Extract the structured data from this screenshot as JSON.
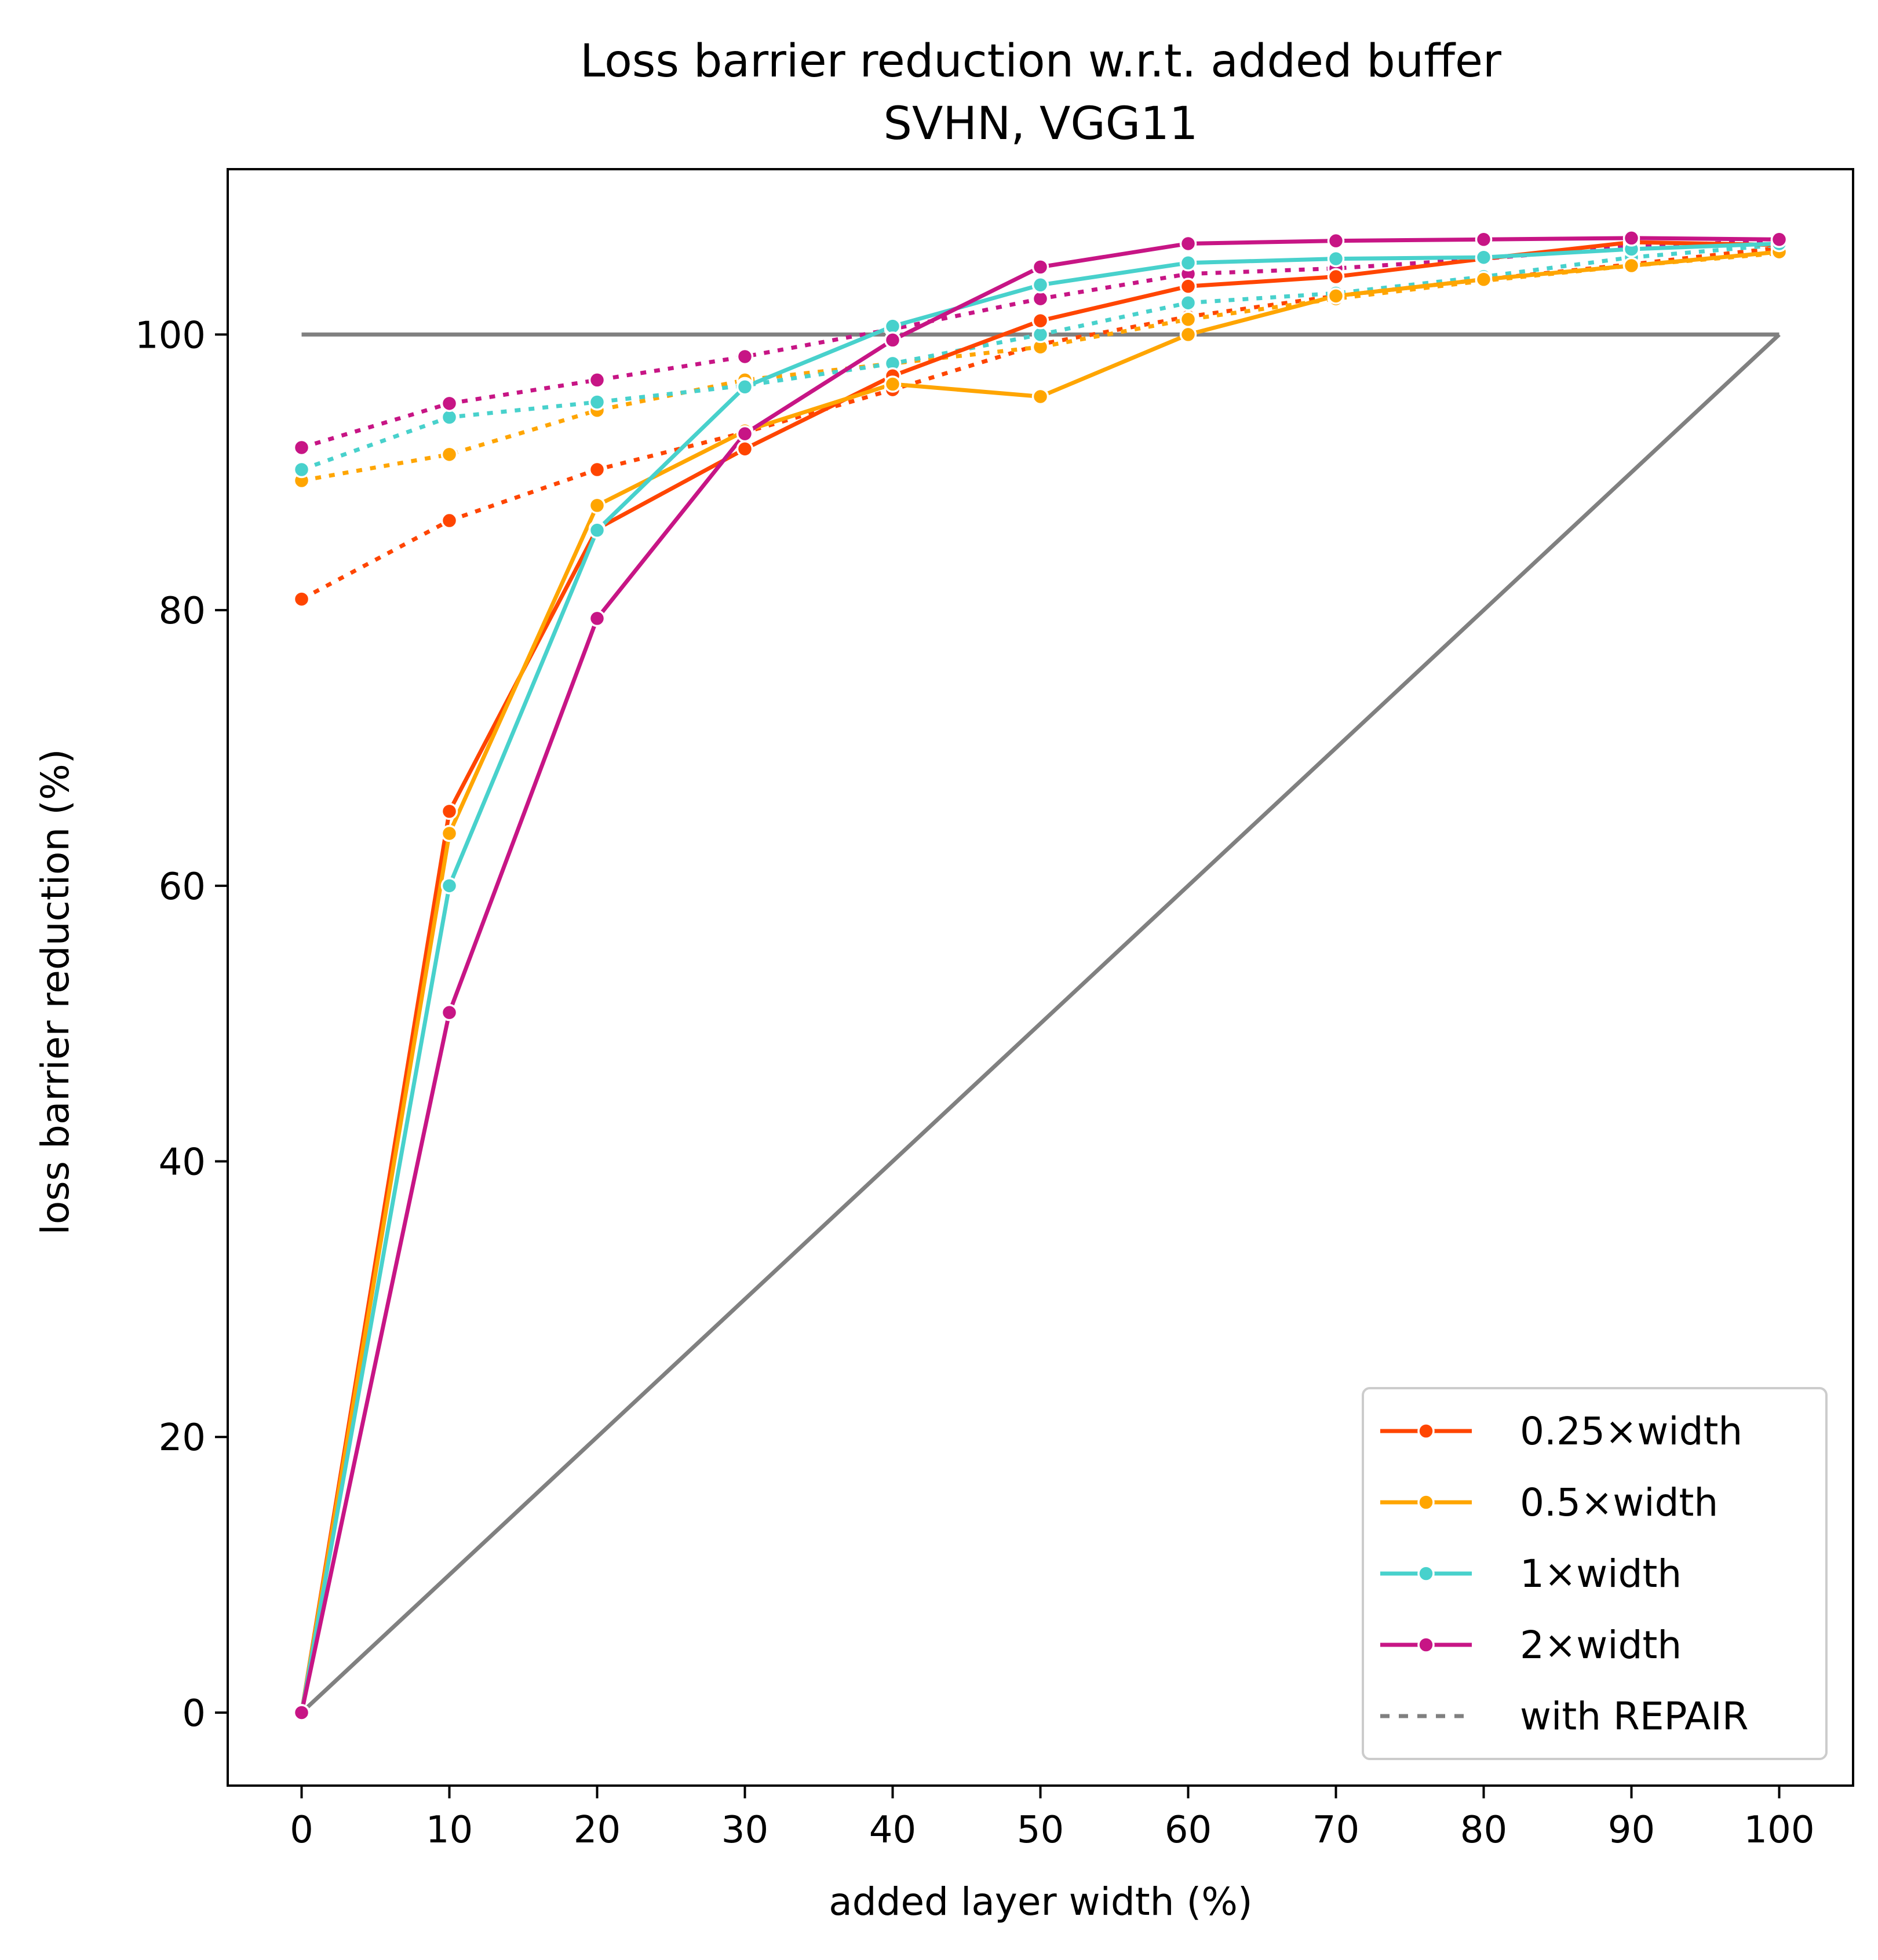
{
  "chart_data": {
    "type": "line",
    "title": "Loss barrier reduction w.r.t. added buffer",
    "subtitle": "SVHN, VGG11",
    "xlabel": "added layer width (%)",
    "ylabel": "loss barrier reduction (%)",
    "xlim": [
      -5,
      105
    ],
    "ylim": [
      -5.3,
      112
    ],
    "xticks": [
      0,
      10,
      20,
      30,
      40,
      50,
      60,
      70,
      80,
      90,
      100
    ],
    "yticks": [
      0,
      20,
      40,
      60,
      80,
      100
    ],
    "xtick_labels": [
      "0",
      "10",
      "20",
      "30",
      "40",
      "50",
      "60",
      "70",
      "80",
      "90",
      "100"
    ],
    "ytick_labels": [
      "0",
      "20",
      "40",
      "60",
      "80",
      "100"
    ],
    "grid": false,
    "legend_position": "bottom-right",
    "x": [
      0,
      10,
      20,
      30,
      40,
      50,
      60,
      70,
      80,
      90,
      100
    ],
    "series": [
      {
        "name": "0.25×width",
        "color": "#ff4500",
        "style": "solid",
        "values": [
          0,
          65.4,
          85.9,
          91.7,
          97.0,
          101.0,
          103.5,
          104.2,
          105.5,
          106.7,
          106.5
        ]
      },
      {
        "name": "0.5×width",
        "color": "#ffa500",
        "style": "solid",
        "values": [
          0,
          63.8,
          87.6,
          93.0,
          96.4,
          95.5,
          100.0,
          102.8,
          104.0,
          105.0,
          106.0
        ]
      },
      {
        "name": "1×width",
        "color": "#48d1cc",
        "style": "solid",
        "values": [
          0,
          60.0,
          85.8,
          96.2,
          100.6,
          103.6,
          105.2,
          105.5,
          105.6,
          106.2,
          106.6
        ]
      },
      {
        "name": "2×width",
        "color": "#c71585",
        "style": "solid",
        "values": [
          0,
          50.8,
          79.4,
          92.8,
          99.6,
          104.9,
          106.6,
          106.8,
          106.9,
          107.0,
          106.9
        ]
      },
      {
        "name": "",
        "color": "#ff4500",
        "style": "dotted",
        "values": [
          80.8,
          86.5,
          90.2,
          92.9,
          96.0,
          99.3,
          101.3,
          102.8,
          104.0,
          105.1,
          106.3
        ]
      },
      {
        "name": "",
        "color": "#ffa500",
        "style": "dotted",
        "values": [
          89.4,
          91.3,
          94.5,
          96.7,
          97.9,
          99.1,
          101.1,
          102.6,
          103.9,
          105.0,
          105.9
        ]
      },
      {
        "name": "",
        "color": "#48d1cc",
        "style": "dotted",
        "values": [
          90.2,
          94.0,
          95.1,
          96.3,
          97.9,
          100.0,
          102.3,
          103.0,
          104.2,
          105.6,
          106.5
        ]
      },
      {
        "name": "",
        "color": "#c71585",
        "style": "dotted",
        "values": [
          91.8,
          95.0,
          96.7,
          98.4,
          100.4,
          102.6,
          104.4,
          104.8,
          105.5,
          106.4,
          106.8
        ]
      }
    ],
    "reference_lines": [
      {
        "color": "#808080",
        "x": [
          0,
          100
        ],
        "y": [
          100,
          100
        ]
      },
      {
        "color": "#808080",
        "x": [
          0,
          100
        ],
        "y": [
          0,
          100
        ]
      }
    ],
    "legend": [
      {
        "label": "0.25×width",
        "color": "#ff4500",
        "style": "solid",
        "marker": true
      },
      {
        "label": "0.5×width",
        "color": "#ffa500",
        "style": "solid",
        "marker": true
      },
      {
        "label": "1×width",
        "color": "#48d1cc",
        "style": "solid",
        "marker": true
      },
      {
        "label": "2×width",
        "color": "#c71585",
        "style": "solid",
        "marker": true
      },
      {
        "label": "with REPAIR",
        "color": "#808080",
        "style": "dotted",
        "marker": false
      }
    ]
  }
}
